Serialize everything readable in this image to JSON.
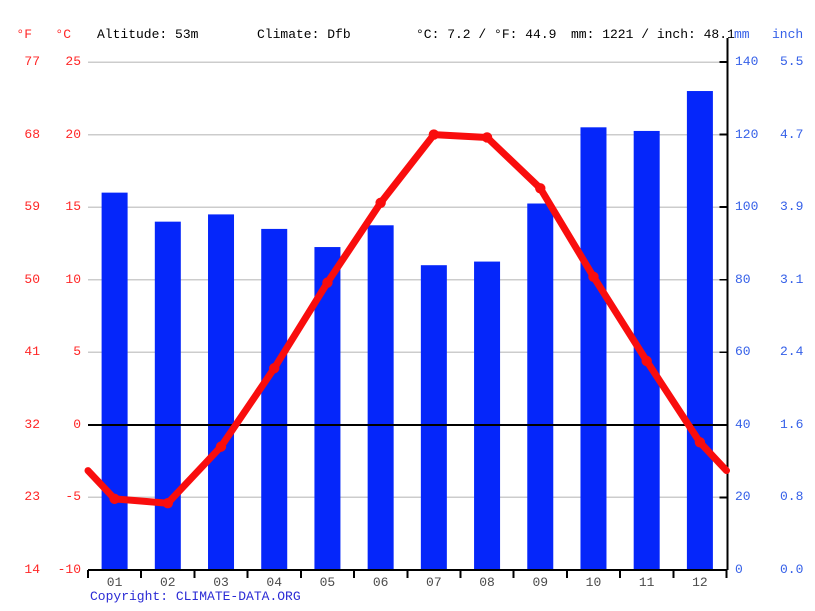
{
  "header": {
    "f_unit": "°F",
    "c_unit": "°C",
    "altitude": "Altitude: 53m",
    "climate": "Climate: Dfb",
    "temp_summary": "°C: 7.2 / °F: 44.9",
    "precip_summary": "mm: 1221 / inch: 48.1",
    "mm_unit": "mm",
    "inch_unit": "inch"
  },
  "axis_labels": {
    "left_f": [
      "77",
      "68",
      "59",
      "50",
      "41",
      "32",
      "23",
      "14"
    ],
    "left_c": [
      "25",
      "20",
      "15",
      "10",
      "5",
      "0",
      "-5",
      "-10"
    ],
    "right_mm": [
      "140",
      "120",
      "100",
      "80",
      "60",
      "40",
      "20",
      "0"
    ],
    "right_inch": [
      "5.5",
      "4.7",
      "3.9",
      "3.1",
      "2.4",
      "1.6",
      "0.8",
      "0.0"
    ]
  },
  "chart_data": {
    "type": "bar+line",
    "subtype": "climograph",
    "categories": [
      "01",
      "02",
      "03",
      "04",
      "05",
      "06",
      "07",
      "08",
      "09",
      "10",
      "11",
      "12"
    ],
    "series": [
      {
        "name": "Precipitation",
        "type": "bar",
        "unit": "mm",
        "color": "#0526fa",
        "values": [
          104,
          96,
          98,
          94,
          89,
          95,
          84,
          85,
          101,
          122,
          121,
          132
        ],
        "annual_total_mm": 1221,
        "annual_total_inch": 48.1
      },
      {
        "name": "Temperature",
        "type": "line",
        "unit": "°C",
        "color": "#f90d0d",
        "values": [
          -5.1,
          -5.4,
          -1.5,
          3.9,
          9.8,
          15.3,
          20.0,
          19.8,
          16.3,
          10.2,
          4.4,
          -1.2
        ],
        "annual_mean_c": 7.2,
        "annual_mean_f": 44.9
      }
    ],
    "left_axis": {
      "unit_f": "°F",
      "unit_c": "°C",
      "c_range": [
        -10,
        25
      ],
      "ticks_c": [
        25,
        20,
        15,
        10,
        5,
        0,
        -5,
        -10
      ],
      "ticks_f": [
        77,
        68,
        59,
        50,
        41,
        32,
        23,
        14
      ]
    },
    "right_axis": {
      "unit_mm": "mm",
      "unit_inch": "inch",
      "mm_range": [
        0,
        140
      ],
      "ticks_mm": [
        140,
        120,
        100,
        80,
        60,
        40,
        20,
        0
      ],
      "ticks_inch": [
        5.5,
        4.7,
        3.9,
        3.1,
        2.4,
        1.6,
        0.8,
        0.0
      ]
    },
    "grid": true,
    "zero_line_c": 0,
    "legend": "none"
  },
  "copyright": {
    "prefix": "Copyright:",
    "link": "CLIMATE-DATA.ORG"
  },
  "colors": {
    "bar_blue": "#0526fa",
    "line_red": "#f90d0d",
    "left_axis_red": "#ff2626",
    "right_axis_blue": "#3560e8",
    "month_label_gray": "#4a4a4a",
    "header_black": "#000000",
    "gridline_gray": "#cccccc",
    "axis_black": "#000000",
    "copyright_blue": "#2b2bd5",
    "background": "#ffffff"
  }
}
